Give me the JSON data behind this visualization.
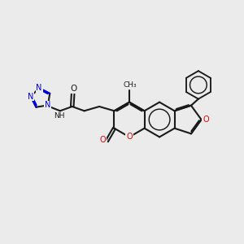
{
  "bg_color": "#ebebeb",
  "bond_color": "#1a1a1a",
  "nitrogen_color": "#0000dd",
  "oxygen_color": "#dd0000",
  "bond_width": 1.5,
  "fig_width": 3.0,
  "fig_height": 3.0,
  "xlim": [
    0,
    10
  ],
  "ylim": [
    0,
    10
  ]
}
